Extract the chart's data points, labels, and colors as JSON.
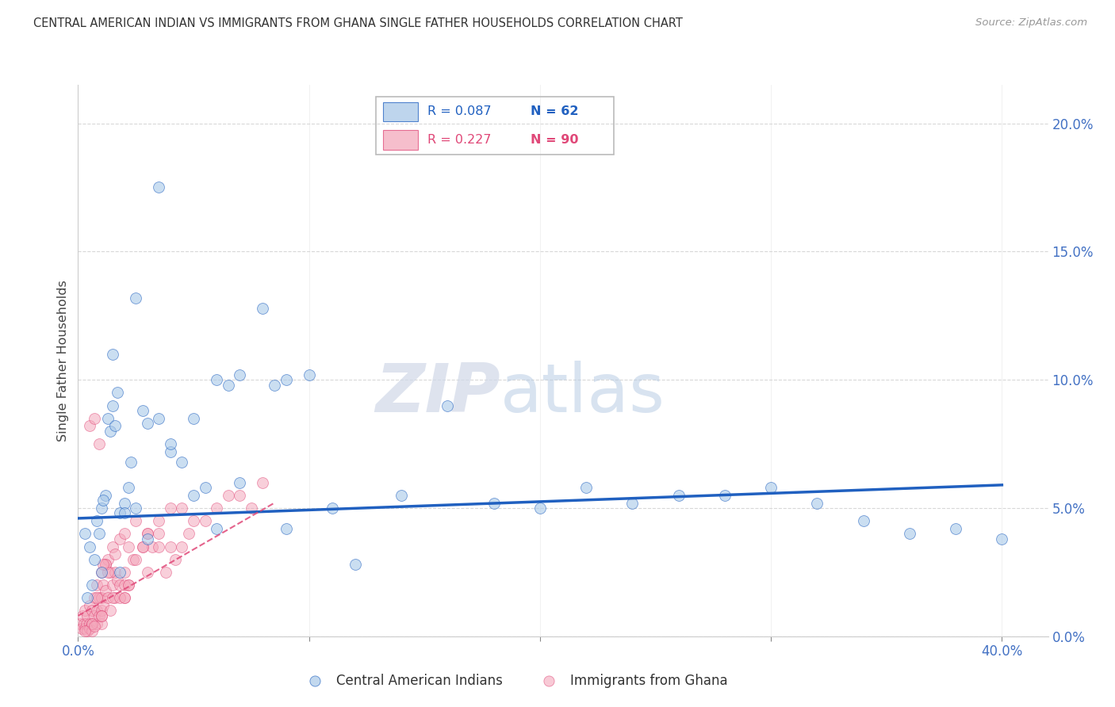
{
  "title": "CENTRAL AMERICAN INDIAN VS IMMIGRANTS FROM GHANA SINGLE FATHER HOUSEHOLDS CORRELATION CHART",
  "source": "Source: ZipAtlas.com",
  "ylabel": "Single Father Households",
  "ytick_vals": [
    0.0,
    5.0,
    10.0,
    15.0,
    20.0
  ],
  "xtick_vals": [
    0.0,
    10.0,
    20.0,
    30.0,
    40.0
  ],
  "xlim": [
    0.0,
    42.0
  ],
  "ylim": [
    0.0,
    21.5
  ],
  "legend_r1": "0.087",
  "legend_n1": "62",
  "legend_r2": "0.227",
  "legend_n2": "90",
  "label1": "Central American Indians",
  "label2": "Immigrants from Ghana",
  "color1": "#a8c8e8",
  "color2": "#f4a8bc",
  "line1_color": "#2060c0",
  "line2_color": "#e04878",
  "blue_scatter_x": [
    0.3,
    0.5,
    0.7,
    0.8,
    1.0,
    1.0,
    1.2,
    1.3,
    1.4,
    1.5,
    1.6,
    1.7,
    1.8,
    2.0,
    2.2,
    2.5,
    2.8,
    3.0,
    3.5,
    4.0,
    4.5,
    5.0,
    5.5,
    6.0,
    6.5,
    7.0,
    8.0,
    8.5,
    9.0,
    10.0,
    11.0,
    12.0,
    14.0,
    16.0,
    18.0,
    20.0,
    22.0,
    24.0,
    26.0,
    28.0,
    30.0,
    32.0,
    34.0,
    36.0,
    38.0,
    40.0,
    1.5,
    2.5,
    3.5,
    5.0,
    7.0,
    9.0,
    6.0,
    4.0,
    3.0,
    2.0,
    1.8,
    0.9,
    1.1,
    0.6,
    0.4,
    2.3
  ],
  "blue_scatter_y": [
    4.0,
    3.5,
    3.0,
    4.5,
    5.0,
    2.5,
    5.5,
    8.5,
    8.0,
    9.0,
    8.2,
    9.5,
    4.8,
    5.2,
    5.8,
    5.0,
    8.8,
    8.3,
    8.5,
    7.2,
    6.8,
    8.5,
    5.8,
    10.0,
    9.8,
    10.2,
    12.8,
    9.8,
    10.0,
    10.2,
    5.0,
    2.8,
    5.5,
    9.0,
    5.2,
    5.0,
    5.8,
    5.2,
    5.5,
    5.5,
    5.8,
    5.2,
    4.5,
    4.0,
    4.2,
    3.8,
    11.0,
    13.2,
    17.5,
    5.5,
    6.0,
    4.2,
    4.2,
    7.5,
    3.8,
    4.8,
    2.5,
    4.0,
    5.3,
    2.0,
    1.5,
    6.8
  ],
  "pink_scatter_x": [
    0.1,
    0.15,
    0.2,
    0.25,
    0.3,
    0.3,
    0.35,
    0.4,
    0.4,
    0.5,
    0.5,
    0.5,
    0.6,
    0.6,
    0.6,
    0.7,
    0.7,
    0.8,
    0.8,
    0.8,
    0.9,
    0.9,
    1.0,
    1.0,
    1.0,
    1.0,
    1.1,
    1.1,
    1.2,
    1.2,
    1.3,
    1.3,
    1.4,
    1.4,
    1.5,
    1.5,
    1.6,
    1.6,
    1.7,
    1.8,
    1.8,
    2.0,
    2.0,
    2.0,
    2.2,
    2.2,
    2.4,
    2.5,
    2.8,
    3.0,
    3.2,
    3.5,
    3.8,
    4.0,
    4.2,
    4.5,
    5.0,
    5.5,
    6.0,
    6.5,
    7.0,
    7.5,
    8.0,
    0.5,
    0.7,
    0.9,
    1.2,
    1.5,
    2.0,
    2.5,
    3.0,
    3.5,
    4.5,
    1.0,
    1.3,
    1.6,
    2.2,
    2.8,
    3.5,
    4.8,
    0.6,
    0.8,
    1.1,
    1.8,
    3.0,
    0.3,
    0.7,
    1.0,
    2.0,
    4.0
  ],
  "pink_scatter_y": [
    0.5,
    0.3,
    0.8,
    0.5,
    1.0,
    0.3,
    0.5,
    0.8,
    0.2,
    1.2,
    0.5,
    0.3,
    1.0,
    0.5,
    0.2,
    1.5,
    0.8,
    2.0,
    1.0,
    0.5,
    1.5,
    0.8,
    2.5,
    1.5,
    1.0,
    0.5,
    2.0,
    1.2,
    2.8,
    1.8,
    3.0,
    1.5,
    2.5,
    1.0,
    3.5,
    2.0,
    2.5,
    1.5,
    2.2,
    3.8,
    2.0,
    4.0,
    2.5,
    1.5,
    3.5,
    2.0,
    3.0,
    4.5,
    3.5,
    4.0,
    3.5,
    4.5,
    2.5,
    5.0,
    3.0,
    3.5,
    4.5,
    4.5,
    5.0,
    5.5,
    5.5,
    5.0,
    6.0,
    8.2,
    8.5,
    7.5,
    2.8,
    1.5,
    2.0,
    3.0,
    4.0,
    3.5,
    5.0,
    0.8,
    2.5,
    3.2,
    2.0,
    3.5,
    4.0,
    4.0,
    0.5,
    1.5,
    2.8,
    1.5,
    2.5,
    0.2,
    0.4,
    0.8,
    1.5,
    3.5
  ],
  "blue_line_x": [
    0.0,
    40.0
  ],
  "blue_line_y": [
    4.6,
    5.9
  ],
  "pink_line_x": [
    0.0,
    8.5
  ],
  "pink_line_y": [
    0.8,
    5.2
  ],
  "watermark_zip": "ZIP",
  "watermark_atlas": "atlas",
  "background_color": "#ffffff",
  "grid_color": "#d8d8d8"
}
